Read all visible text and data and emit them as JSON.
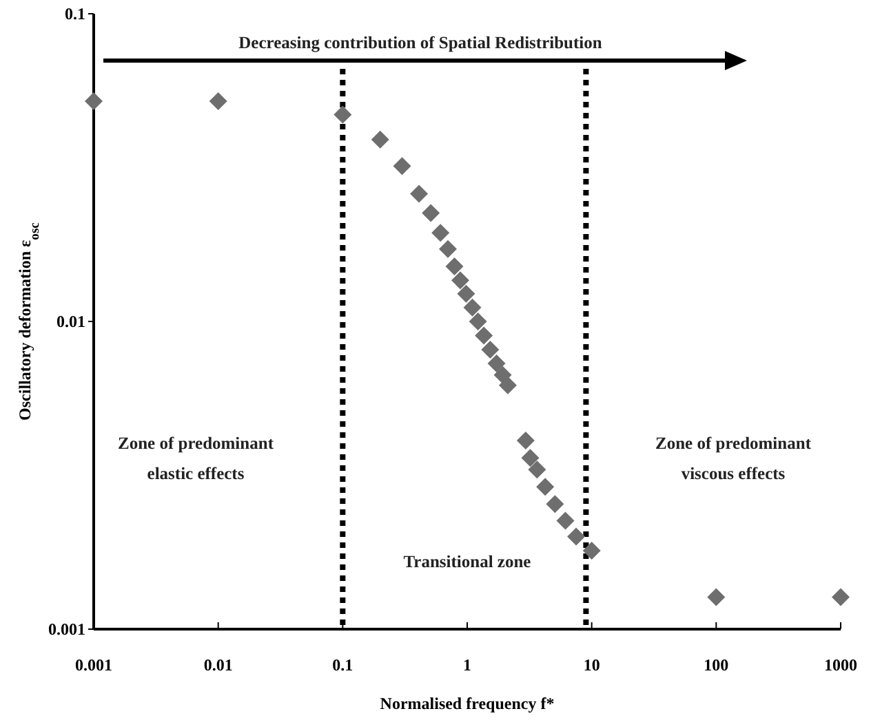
{
  "chart_data": {
    "type": "scatter",
    "xlabel": "Normalised frequency f*",
    "ylabel": "Oscillatory deformation ε$_{osc}$",
    "log": "xy",
    "xlim": [
      0.001,
      1000
    ],
    "ylim": [
      0.001,
      0.1
    ],
    "xticks": [
      0.001,
      0.01,
      0.1,
      1,
      10,
      100,
      1000
    ],
    "yticks": [
      0.001,
      0.01,
      0.1
    ],
    "grid": false,
    "marker": "diamond",
    "series": [
      {
        "color": "#6e6e6e",
        "x": [
          0.001,
          0.01,
          0.1,
          0.2,
          0.3,
          0.41,
          0.51,
          0.61,
          0.7,
          0.79,
          0.88,
          0.98,
          1.1,
          1.22,
          1.36,
          1.53,
          1.72,
          1.93,
          2.12,
          2.95,
          3.21,
          3.64,
          4.23,
          5.07,
          6.15,
          7.5,
          10,
          100,
          1000
        ],
        "values": [
          0.052,
          0.052,
          0.047,
          0.039,
          0.032,
          0.026,
          0.0225,
          0.0194,
          0.0172,
          0.0151,
          0.0136,
          0.0123,
          0.0111,
          0.01,
          0.009,
          0.0081,
          0.0073,
          0.0067,
          0.0062,
          0.0041,
          0.0036,
          0.0033,
          0.0029,
          0.00255,
          0.00225,
          0.002,
          0.0018,
          0.00127,
          0.00127
        ]
      }
    ],
    "ref_lines": [
      {
        "axis": "x",
        "value": 0.1,
        "color": "#000000",
        "line_style": "dotted"
      },
      {
        "axis": "x",
        "value": 9,
        "color": "#000000",
        "line_style": "dotted"
      }
    ],
    "annotations": [
      "Decreasing contribution of Spatial Redistribution",
      "Zone of predominant\nelastic effects",
      "Transitional  zone",
      "Zone of predominant\nviscous effects"
    ]
  }
}
